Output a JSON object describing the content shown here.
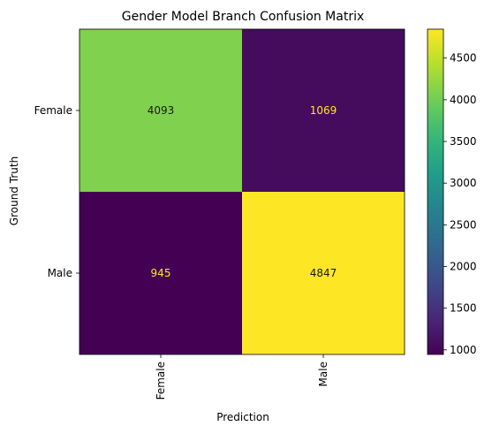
{
  "chart_data": {
    "type": "heatmap",
    "title": "Gender Model Branch Confusion Matrix",
    "xlabel": "Prediction",
    "ylabel": "Ground Truth",
    "x_categories": [
      "Female",
      "Male"
    ],
    "y_categories": [
      "Female",
      "Male"
    ],
    "values": [
      [
        4093,
        1069
      ],
      [
        945,
        4847
      ]
    ],
    "colormap": "viridis",
    "colorbar": {
      "range": [
        945,
        4847
      ],
      "ticks": [
        "1000",
        "1500",
        "2000",
        "2500",
        "3000",
        "3500",
        "4000",
        "4500"
      ]
    },
    "grid": false
  }
}
